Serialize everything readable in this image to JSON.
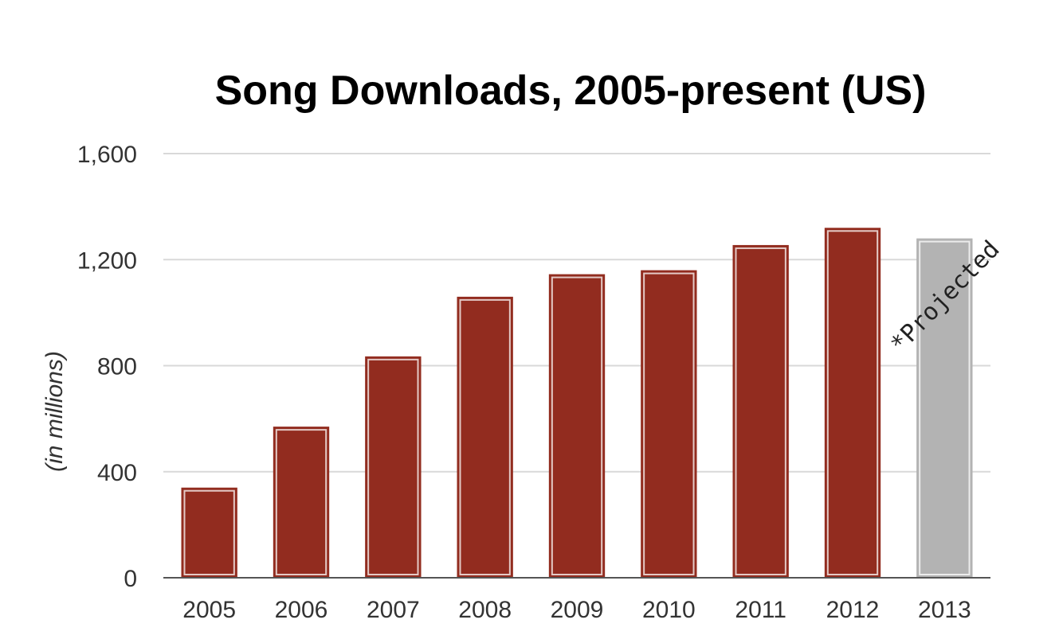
{
  "chart_data": {
    "type": "bar",
    "title": "Song Downloads, 2005-present (US)",
    "ylabel": "(in millions)",
    "xlabel": "",
    "categories": [
      "2005",
      "2006",
      "2007",
      "2008",
      "2009",
      "2010",
      "2011",
      "2012",
      "2013"
    ],
    "values": [
      340,
      570,
      835,
      1060,
      1145,
      1160,
      1255,
      1320,
      1280
    ],
    "projected": [
      false,
      false,
      false,
      false,
      false,
      false,
      false,
      false,
      true
    ],
    "ylim": [
      0,
      1600
    ],
    "yticks": [
      "0",
      "400",
      "800",
      "1,200",
      "1,600"
    ],
    "ytick_values": [
      0,
      400,
      800,
      1200,
      1600
    ],
    "grid": true,
    "colors": {
      "actual": "#922c1f",
      "projected": "#b3b3b3",
      "grid": "#d9d9d9"
    },
    "annotation": "*Projected"
  }
}
